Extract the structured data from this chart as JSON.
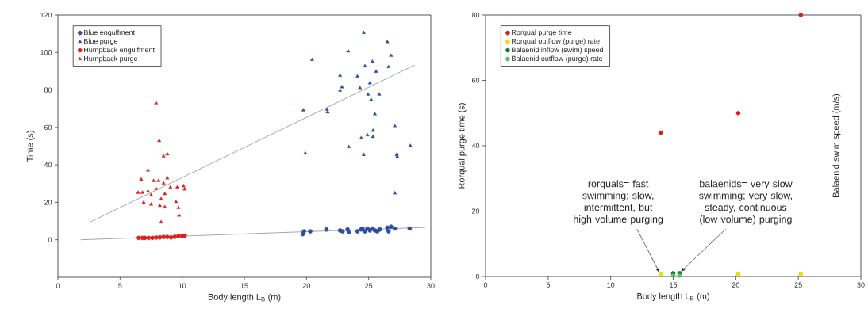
{
  "chart_data": [
    {
      "type": "scatter",
      "xlabel": "Body length L$_{B}$ (m)",
      "ylabel": "Time (s)",
      "xlim": [
        0,
        30
      ],
      "ylim": [
        -20,
        120
      ],
      "xticks": [
        0,
        5,
        10,
        15,
        20,
        25,
        30
      ],
      "yticks": [
        0,
        20,
        40,
        60,
        80,
        100,
        120
      ],
      "legend": "top left",
      "grid": false,
      "series": [
        {
          "name": "Blue engulfment",
          "color": "#2e4fa8",
          "marker": "circle",
          "x": [
            19.7,
            19.8,
            20.3,
            21.6,
            22.7,
            22.9,
            23.3,
            23.4,
            24.1,
            24.4,
            24.5,
            24.7,
            24.9,
            25.1,
            25.3,
            25.5,
            25.7,
            25.9,
            26.5,
            26.6,
            26.8,
            27.1,
            28.3
          ],
          "values": [
            3,
            4.5,
            4.5,
            5.5,
            5,
            4.5,
            5.5,
            4,
            4.5,
            5.5,
            6,
            4.5,
            6,
            5,
            6,
            5,
            4.5,
            5.5,
            6.5,
            4.5,
            7,
            6,
            6
          ]
        },
        {
          "name": "Blue purge",
          "color": "#2e4fa8",
          "marker": "triangle",
          "x": [
            24.6,
            26.5,
            23.35,
            26.8,
            20.45,
            25.3,
            24.7,
            26.6,
            25.6,
            22.7,
            24.1,
            25.1,
            22.85,
            24.3,
            22.7,
            24.95,
            25.85,
            25.2,
            19.75,
            21.65,
            21.7,
            25.5,
            27.1,
            25.35,
            24.9,
            24.4,
            25.35,
            28.35,
            23.4,
            19.9,
            27.25,
            27.3,
            24.6,
            27.1
          ],
          "values": [
            110.5,
            105.6,
            100.7,
            98.3,
            96.1,
            95.1,
            92.7,
            92.3,
            89.8,
            87.7,
            87.2,
            83.6,
            81.5,
            81.1,
            79.7,
            77.6,
            77.6,
            74.8,
            69.2,
            69.5,
            68.1,
            67.1,
            60.8,
            58.3,
            55.9,
            54.3,
            55,
            50.2,
            49.6,
            46.2,
            45.4,
            44.3,
            45.4,
            24.9
          ]
        },
        {
          "name": "Humpback engulfment",
          "color": "#e8201c",
          "marker": "circle",
          "x": [
            6.5,
            6.8,
            7.0,
            7.3,
            7.6,
            7.9,
            8.2,
            8.5,
            8.8,
            9.1,
            9.4,
            9.7,
            10.0,
            10.2
          ],
          "values": [
            1,
            1,
            1,
            1,
            1,
            1.2,
            1.3,
            1.5,
            1.5,
            1.3,
            1.6,
            2,
            2,
            2.2
          ]
        },
        {
          "name": "Humpback purge",
          "color": "#e8201c",
          "marker": "triangle",
          "x": [
            7.9,
            8.15,
            8.5,
            8.8,
            7.25,
            6.7,
            6.45,
            6.8,
            6.9,
            7.5,
            7.7,
            8.1,
            8.5,
            8.8,
            7.9,
            7.5,
            8.3,
            8.2,
            8.6,
            9.05,
            9.6,
            9.5,
            9.7,
            9.75,
            8.3,
            10.1,
            10.2,
            7.25,
            8.6
          ],
          "values": [
            73,
            52.9,
            44.6,
            45.7,
            37.1,
            32.2,
            25.2,
            25.2,
            19.9,
            18.9,
            31.5,
            31.5,
            30.1,
            32.9,
            27.3,
            23.8,
            21.7,
            18.2,
            17.5,
            28,
            28,
            20.3,
            17.1,
            13,
            9.4,
            28.7,
            27,
            25.9,
            24.5
          ]
        },
        {
          "type": "line",
          "color": "#909090",
          "marker": "none",
          "x": [
            2.57,
            28.7
          ],
          "values": [
            9.4,
            93.3
          ]
        },
        {
          "type": "line",
          "color": "#909090",
          "marker": "none",
          "x": [
            1.83,
            29.55
          ],
          "values": [
            0,
            6.6
          ]
        }
      ]
    },
    {
      "type": "scatter",
      "xlabel": "Body length L$_{B}$ (m)",
      "ylabel": "Rorqual purge time (s)",
      "y2label": "Balaenid swim speed (m/s)",
      "xlim": [
        0,
        30
      ],
      "ylim": [
        0,
        80
      ],
      "xticks": [
        0,
        5,
        10,
        15,
        20,
        25,
        30
      ],
      "yticks": [
        0,
        20,
        40,
        60,
        80
      ],
      "legend": "top left",
      "grid": false,
      "series": [
        {
          "name": "Rorqual purge time",
          "color": "#e41a1c",
          "marker": "circle",
          "x": [
            14,
            20.2,
            25.2
          ],
          "values": [
            44,
            50,
            80
          ]
        },
        {
          "name": "Rorqual outflow (purge) rate",
          "color": "#f0e010",
          "marker": "circle",
          "x": [
            14,
            20.2,
            25.2
          ],
          "values": [
            0.7,
            0.7,
            0.7
          ]
        },
        {
          "name": "Balaenid inflow (swim) speed",
          "color": "#1a7a3a",
          "marker": "circle",
          "x": [
            15,
            15.5
          ],
          "values": [
            1,
            1
          ]
        },
        {
          "name": "Balaenid outflow (purge) rate",
          "color": "#5cc05c",
          "marker": "circle",
          "x": [
            15,
            15.5
          ],
          "values": [
            0.3,
            0.3
          ]
        }
      ],
      "annotations": [
        {
          "text": "rorquals= fast swimming; slow, intermittent, but high volume purging",
          "x": 14,
          "y": 0.7
        },
        {
          "text": "balaenids= very slow swimming; very slow, steady, continuous (low volume) purging",
          "x": 15.5,
          "y": 1
        }
      ]
    }
  ]
}
